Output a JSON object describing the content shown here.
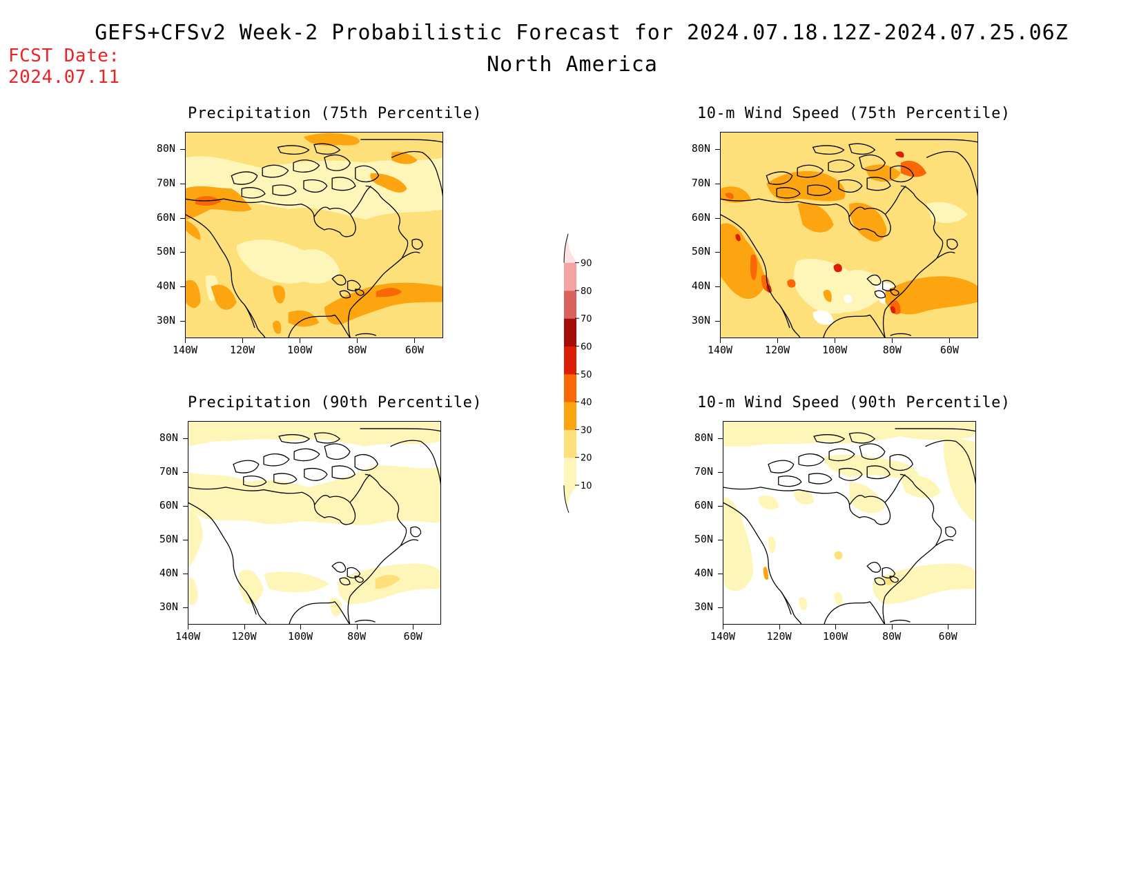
{
  "header": {
    "title": "GEFS+CFSv2 Week-2 Probabilistic Forecast for 2024.07.18.12Z-2024.07.25.06Z",
    "subtitle": "North America",
    "fcst_label": "FCST Date:",
    "fcst_date": "2024.07.11"
  },
  "colors": {
    "c10": "#fef6b8",
    "c20": "#fde07a",
    "c30": "#fca511",
    "c40": "#fa6705",
    "c50": "#dd1e07",
    "c60": "#a50d0a",
    "c70": "#d9625f",
    "c80": "#f3a3a4",
    "c90": "#fde2e3"
  },
  "colorbar": {
    "labels": [
      "10",
      "20",
      "30",
      "40",
      "50",
      "60",
      "70",
      "80",
      "90"
    ]
  },
  "panels": [
    {
      "id": "precip75",
      "title": "Precipitation (75th Percentile)"
    },
    {
      "id": "wind75",
      "title": "10-m Wind Speed (75th Percentile)"
    },
    {
      "id": "precip90",
      "title": "Precipitation (90th Percentile)"
    },
    {
      "id": "wind90",
      "title": "10-m Wind Speed (90th Percentile)"
    }
  ],
  "axes": {
    "lat_ticks": [
      "80N",
      "70N",
      "60N",
      "50N",
      "40N",
      "30N"
    ],
    "lon_ticks": [
      "140W",
      "120W",
      "100W",
      "80W",
      "60W"
    ],
    "lat_values": [
      80,
      70,
      60,
      50,
      40,
      30
    ],
    "lon_values": [
      -140,
      -120,
      -100,
      -80,
      -60
    ],
    "lat_range": [
      25,
      85
    ],
    "lon_range": [
      -140,
      -50
    ]
  }
}
